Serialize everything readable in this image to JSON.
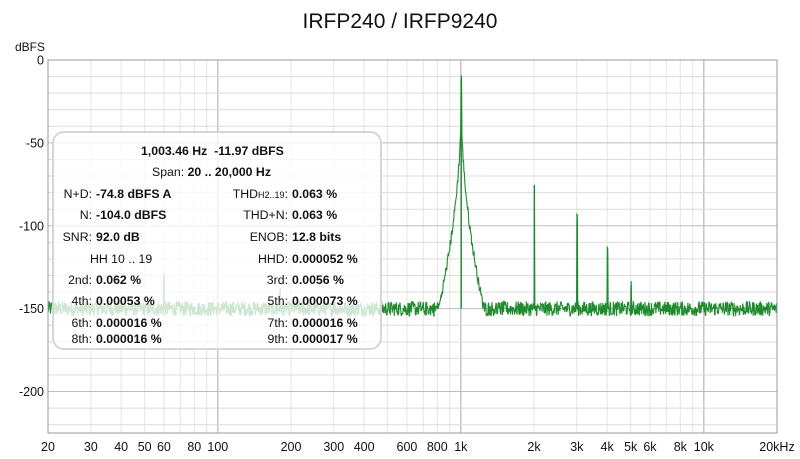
{
  "chart_data": {
    "type": "line",
    "title": "IRFP240 / IRFP9240",
    "ylabel": "dBFS",
    "xscale": "log",
    "xlim": [
      20,
      20000
    ],
    "ylim": [
      -225,
      0
    ],
    "y_ticks": [
      {
        "value": 0,
        "label": "0"
      },
      {
        "value": -50,
        "label": "-50"
      },
      {
        "value": -100,
        "label": "-100"
      },
      {
        "value": -150,
        "label": "-150"
      },
      {
        "value": -200,
        "label": "-200"
      }
    ],
    "x_ticks": [
      {
        "value": 20,
        "label": "20"
      },
      {
        "value": 30,
        "label": "30"
      },
      {
        "value": 40,
        "label": "40"
      },
      {
        "value": 50,
        "label": "50"
      },
      {
        "value": 60,
        "label": "60"
      },
      {
        "value": 80,
        "label": "80"
      },
      {
        "value": 100,
        "label": "100"
      },
      {
        "value": 200,
        "label": "200"
      },
      {
        "value": 300,
        "label": "300"
      },
      {
        "value": 400,
        "label": "400"
      },
      {
        "value": 600,
        "label": "600"
      },
      {
        "value": 800,
        "label": "800"
      },
      {
        "value": 1000,
        "label": "1k"
      },
      {
        "value": 2000,
        "label": "2k"
      },
      {
        "value": 3000,
        "label": "3k"
      },
      {
        "value": 4000,
        "label": "4k"
      },
      {
        "value": 5000,
        "label": "5k"
      },
      {
        "value": 6000,
        "label": "6k"
      },
      {
        "value": 8000,
        "label": "8k"
      },
      {
        "value": 10000,
        "label": "10k"
      },
      {
        "value": 20000,
        "label": "20kHz"
      }
    ],
    "grid": true,
    "series": [
      {
        "color": "#1f8a2e",
        "noise_floor_dbfs": -150,
        "peaks": [
          {
            "x": 1003.46,
            "y": -11.97
          },
          {
            "x": 2007,
            "y": -76
          },
          {
            "x": 3010,
            "y": -97
          },
          {
            "x": 4014,
            "y": -117
          },
          {
            "x": 5017,
            "y": -136
          },
          {
            "x": 60,
            "y": -131
          },
          {
            "x": 180,
            "y": -141
          },
          {
            "x": 300,
            "y": -145
          }
        ]
      }
    ]
  },
  "overlay": {
    "line1_freq": "1,003.46 Hz",
    "line1_level": "-11.97 dBFS",
    "span_label": "Span:",
    "span_value": "20 .. 20,000 Hz",
    "nd_label": "N+D:",
    "nd_value": "-74.8 dBFS A",
    "thd_label": "THD",
    "thd_sub": "H2..19",
    "thd_colon": ":",
    "thd_value": "0.063 %",
    "n_label": "N:",
    "n_value": "-104.0 dBFS",
    "thdn_label": "THD+N:",
    "thdn_value": "0.063 %",
    "snr_label": "SNR:",
    "snr_value": "92.0 dB",
    "enob_label": "ENOB:",
    "enob_value": "12.8 bits",
    "hh_label": "HH 10 .. 19",
    "hhd_label": "HHD:",
    "hhd_value": "0.000052 %",
    "h2_label": "2nd:",
    "h2_value": "0.062 %",
    "h3_label": "3rd:",
    "h3_value": "0.0056 %",
    "h4_label": "4th:",
    "h4_value": "0.00053 %",
    "h5_label": "5th:",
    "h5_value": "0.000073 %",
    "h6_label": "6th:",
    "h6_value": "0.000016 %",
    "h7_label": "7th:",
    "h7_value": "0.000016 %",
    "h8_label": "8th:",
    "h8_value": "0.000016 %",
    "h9_label": "9th:",
    "h9_value": "0.000017 %"
  }
}
